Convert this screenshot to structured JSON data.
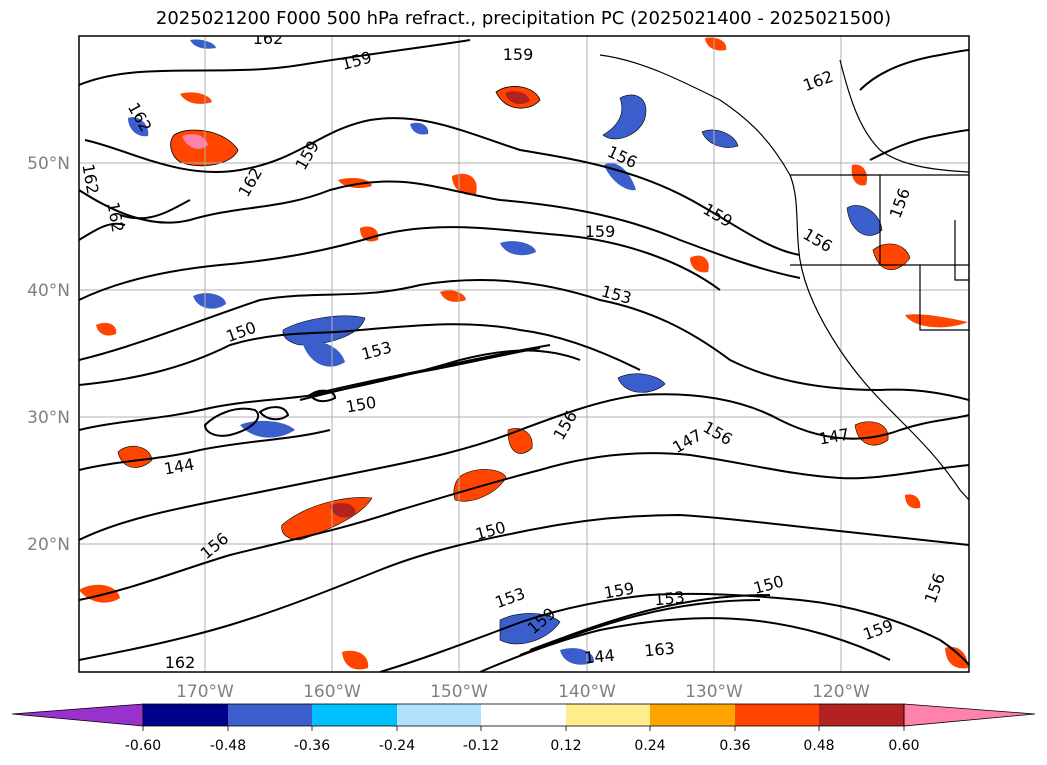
{
  "title": "2025021200 F000 500 hPa refract., precipitation PC (2025021400 - 2025021500)",
  "map": {
    "lat_labels": [
      "50°N",
      "40°N",
      "30°N",
      "20°N"
    ],
    "lon_labels": [
      "170°W",
      "160°W",
      "150°W",
      "140°W",
      "130°W",
      "120°W"
    ],
    "contour_labels": [
      "162",
      "159",
      "159",
      "162",
      "162",
      "162",
      "162",
      "162",
      "159",
      "156",
      "156",
      "159",
      "159",
      "156",
      "153",
      "150",
      "153",
      "150",
      "156",
      "156",
      "147",
      "147",
      "144",
      "150",
      "156",
      "153",
      "159",
      "159",
      "153",
      "150",
      "156",
      "159",
      "144",
      "163",
      "162"
    ]
  },
  "colorbar": {
    "ticks": [
      "-0.60",
      "-0.48",
      "-0.36",
      "-0.24",
      "-0.12",
      "0.12",
      "0.24",
      "0.36",
      "0.48",
      "0.60"
    ],
    "colors": {
      "under": "#9932cc",
      "neg_060": "#00008b",
      "neg_048": "#3a5fcd",
      "neg_036": "#00bfff",
      "neg_024": "#b0e2ff",
      "zero": "#ffffff",
      "pos_012": "#ffec8b",
      "pos_024": "#ffa500",
      "pos_036": "#ff4500",
      "pos_048": "#b22222",
      "over": "#ff82ab"
    }
  }
}
